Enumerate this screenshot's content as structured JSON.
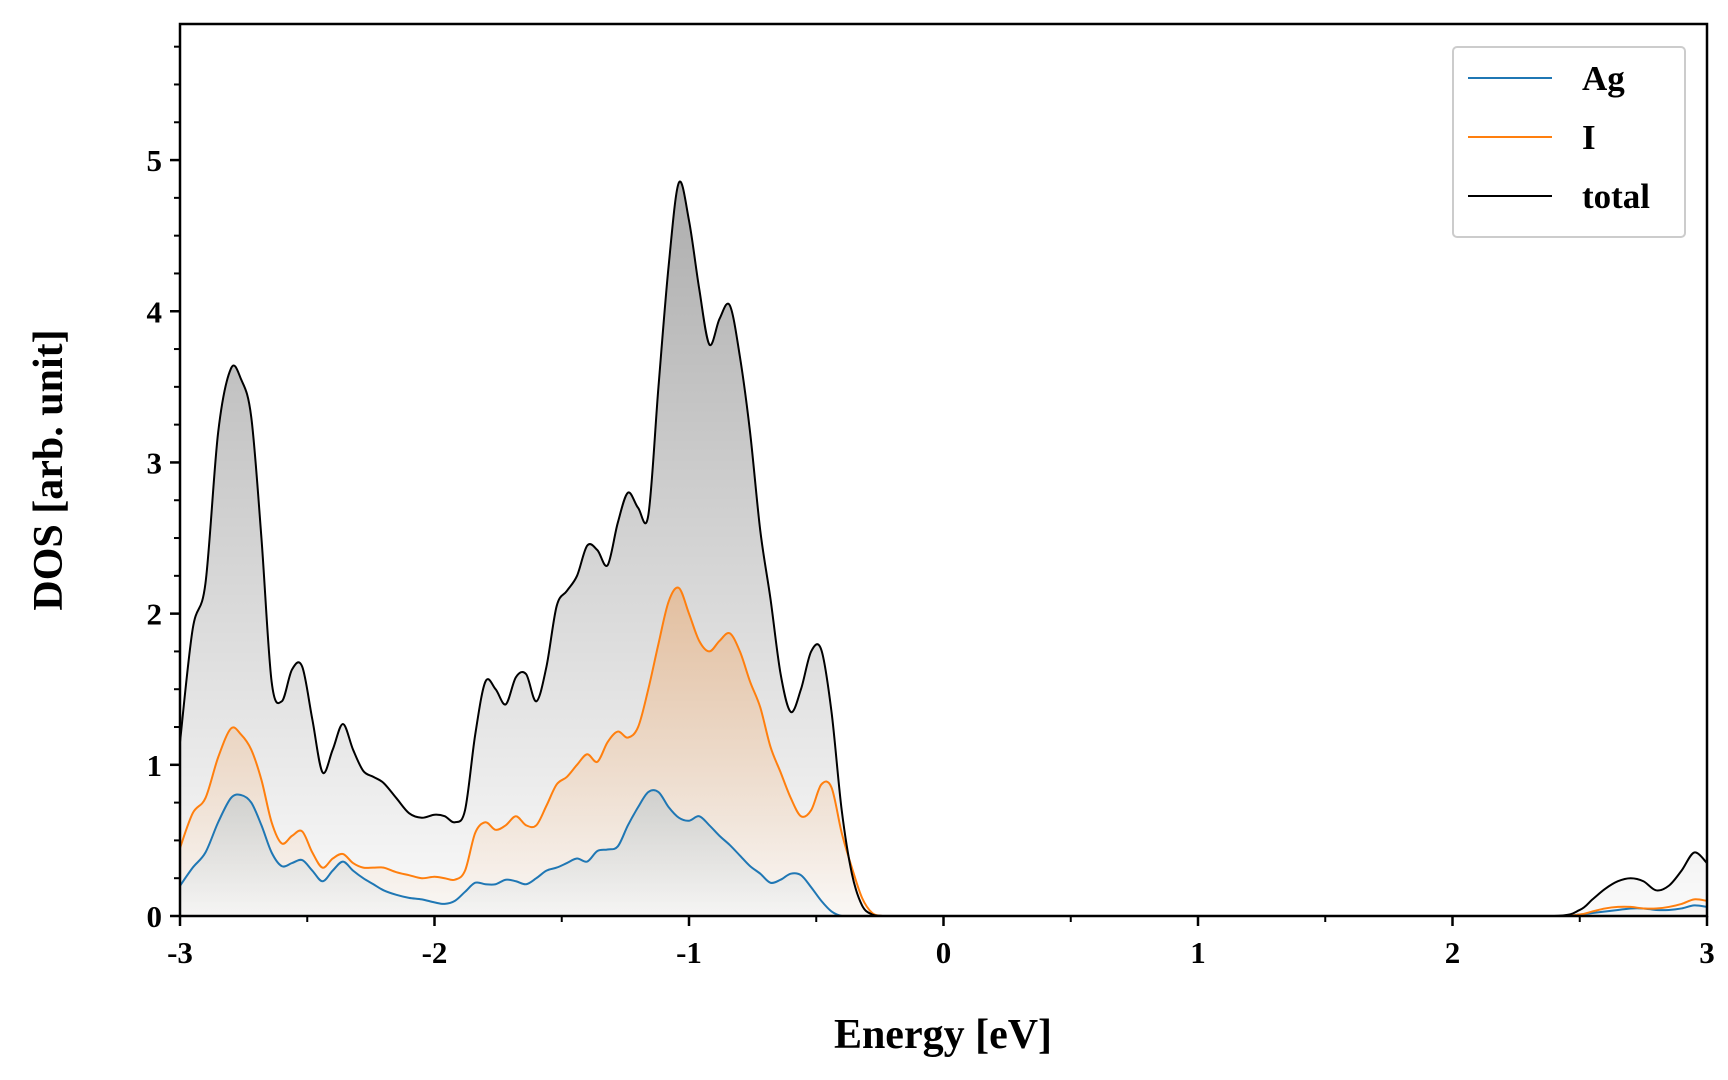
{
  "chart_data": {
    "type": "line",
    "xlabel": "Energy [eV]",
    "ylabel": "DOS [arb. unit]",
    "xlim": [
      -3,
      3
    ],
    "ylim": [
      0,
      5.9
    ],
    "xticks": [
      -3,
      -2,
      -1,
      0,
      1,
      2,
      3
    ],
    "xtick_labels": [
      "-3",
      "-2",
      "-1",
      "0",
      "1",
      "2",
      "3"
    ],
    "yticks": [
      0,
      1,
      2,
      3,
      4,
      5
    ],
    "ytick_labels": [
      "0",
      "1",
      "2",
      "3",
      "4",
      "5"
    ],
    "grid": false,
    "legend_position": "top-right",
    "fill_under_curves": true,
    "x": [
      -3.0,
      -2.95,
      -2.9,
      -2.85,
      -2.8,
      -2.76,
      -2.72,
      -2.68,
      -2.64,
      -2.6,
      -2.56,
      -2.52,
      -2.48,
      -2.44,
      -2.4,
      -2.36,
      -2.32,
      -2.28,
      -2.24,
      -2.2,
      -2.15,
      -2.1,
      -2.05,
      -2.0,
      -1.96,
      -1.92,
      -1.88,
      -1.84,
      -1.8,
      -1.76,
      -1.72,
      -1.68,
      -1.64,
      -1.6,
      -1.56,
      -1.52,
      -1.48,
      -1.44,
      -1.4,
      -1.36,
      -1.32,
      -1.28,
      -1.24,
      -1.2,
      -1.16,
      -1.12,
      -1.08,
      -1.04,
      -1.0,
      -0.96,
      -0.92,
      -0.88,
      -0.84,
      -0.8,
      -0.76,
      -0.72,
      -0.68,
      -0.64,
      -0.6,
      -0.56,
      -0.52,
      -0.48,
      -0.44,
      -0.4,
      -0.36,
      -0.32,
      -0.28,
      -0.24,
      -0.2,
      -0.16,
      -0.12,
      -0.08,
      -0.04,
      0.0,
      0.5,
      1.0,
      1.5,
      2.0,
      2.4,
      2.5,
      2.55,
      2.6,
      2.65,
      2.7,
      2.75,
      2.8,
      2.85,
      2.9,
      2.95,
      3.0
    ],
    "series": [
      {
        "name": "Ag",
        "color": "#1f77b4",
        "values": [
          0.2,
          0.32,
          0.42,
          0.62,
          0.78,
          0.8,
          0.75,
          0.6,
          0.42,
          0.33,
          0.35,
          0.37,
          0.3,
          0.23,
          0.3,
          0.36,
          0.3,
          0.25,
          0.21,
          0.17,
          0.14,
          0.12,
          0.11,
          0.09,
          0.08,
          0.1,
          0.16,
          0.22,
          0.21,
          0.21,
          0.24,
          0.23,
          0.21,
          0.25,
          0.3,
          0.32,
          0.35,
          0.38,
          0.36,
          0.43,
          0.44,
          0.46,
          0.6,
          0.72,
          0.82,
          0.82,
          0.72,
          0.65,
          0.63,
          0.66,
          0.6,
          0.53,
          0.47,
          0.4,
          0.33,
          0.28,
          0.22,
          0.24,
          0.28,
          0.27,
          0.19,
          0.1,
          0.03,
          0.0,
          0.0,
          0.0,
          0.0,
          0.0,
          0.0,
          0.0,
          0.0,
          0.0,
          0.0,
          0.0,
          0.0,
          0.0,
          0.0,
          0.0,
          0.0,
          0.01,
          0.02,
          0.03,
          0.04,
          0.05,
          0.05,
          0.04,
          0.04,
          0.05,
          0.07,
          0.06
        ]
      },
      {
        "name": "I",
        "color": "#ff7f0e",
        "values": [
          0.45,
          0.68,
          0.78,
          1.05,
          1.24,
          1.2,
          1.1,
          0.9,
          0.62,
          0.48,
          0.53,
          0.56,
          0.42,
          0.32,
          0.38,
          0.41,
          0.35,
          0.32,
          0.32,
          0.32,
          0.29,
          0.27,
          0.25,
          0.26,
          0.25,
          0.24,
          0.3,
          0.55,
          0.62,
          0.57,
          0.6,
          0.66,
          0.6,
          0.6,
          0.73,
          0.87,
          0.92,
          1.0,
          1.07,
          1.02,
          1.15,
          1.22,
          1.18,
          1.25,
          1.5,
          1.8,
          2.08,
          2.17,
          2.0,
          1.82,
          1.75,
          1.82,
          1.87,
          1.75,
          1.55,
          1.38,
          1.12,
          0.95,
          0.78,
          0.66,
          0.7,
          0.87,
          0.85,
          0.55,
          0.32,
          0.12,
          0.02,
          0.0,
          0.0,
          0.0,
          0.0,
          0.0,
          0.0,
          0.0,
          0.0,
          0.0,
          0.0,
          0.0,
          0.0,
          0.01,
          0.03,
          0.05,
          0.06,
          0.06,
          0.05,
          0.05,
          0.06,
          0.08,
          0.11,
          0.1
        ]
      },
      {
        "name": "total",
        "color": "#000000",
        "values": [
          1.15,
          1.9,
          2.2,
          3.2,
          3.62,
          3.55,
          3.3,
          2.5,
          1.55,
          1.42,
          1.63,
          1.65,
          1.3,
          0.95,
          1.1,
          1.27,
          1.1,
          0.96,
          0.92,
          0.88,
          0.78,
          0.68,
          0.65,
          0.67,
          0.66,
          0.62,
          0.7,
          1.2,
          1.55,
          1.5,
          1.4,
          1.58,
          1.6,
          1.42,
          1.65,
          2.05,
          2.15,
          2.25,
          2.45,
          2.42,
          2.32,
          2.6,
          2.8,
          2.7,
          2.65,
          3.5,
          4.3,
          4.85,
          4.6,
          4.15,
          3.78,
          3.95,
          4.04,
          3.7,
          3.2,
          2.55,
          2.1,
          1.6,
          1.35,
          1.5,
          1.75,
          1.76,
          1.35,
          0.7,
          0.28,
          0.07,
          0.01,
          0.0,
          0.0,
          0.0,
          0.0,
          0.0,
          0.0,
          0.0,
          0.0,
          0.0,
          0.0,
          0.0,
          0.0,
          0.04,
          0.11,
          0.18,
          0.23,
          0.25,
          0.23,
          0.17,
          0.2,
          0.3,
          0.42,
          0.35
        ]
      }
    ]
  }
}
